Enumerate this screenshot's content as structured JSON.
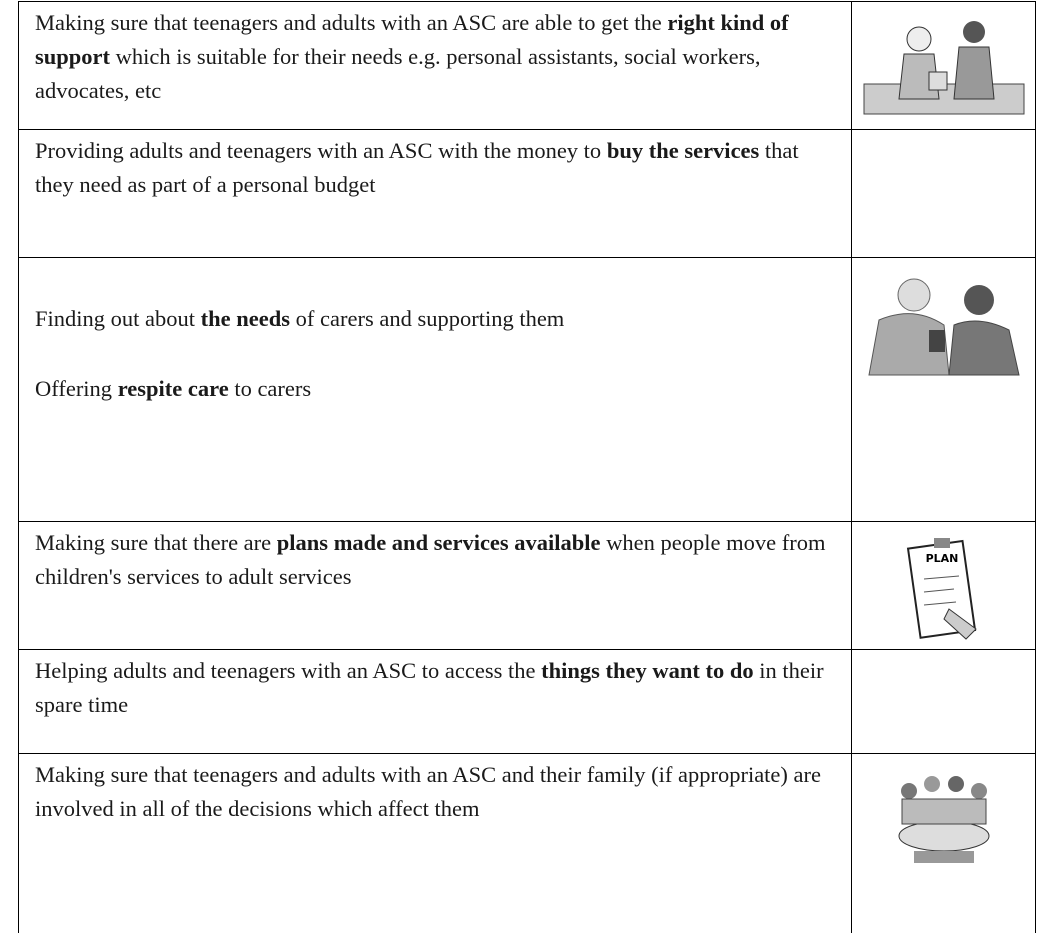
{
  "table": {
    "rows": [
      {
        "paragraphs": [
          [
            {
              "text": "Making sure that teenagers and adults with an ASC are able to get the "
            },
            {
              "text": "right kind of support",
              "bold": true
            },
            {
              "text": " which is suitable for their needs e.g. personal assistants, social workers, advocates, etc"
            }
          ]
        ]
      },
      {
        "paragraphs": [
          [
            {
              "text": "Providing adults and teenagers with an ASC with the money to "
            },
            {
              "text": "buy the services",
              "bold": true
            },
            {
              "text": " that they need as part of a personal budget"
            }
          ]
        ]
      },
      {
        "paragraphs": [
          [
            {
              "text": "Finding out about "
            },
            {
              "text": "the needs",
              "bold": true
            },
            {
              "text": " of carers and supporting them"
            }
          ],
          [
            {
              "text": "Offering "
            },
            {
              "text": "respite care",
              "bold": true
            },
            {
              "text": " to carers"
            }
          ]
        ]
      },
      {
        "paragraphs": [
          [
            {
              "text": "Making sure that there are "
            },
            {
              "text": "plans made and services available",
              "bold": true
            },
            {
              "text": " when people move from children's services to adult services"
            }
          ]
        ]
      },
      {
        "paragraphs": [
          [
            {
              "text": "Helping adults and teenagers with an ASC to access the "
            },
            {
              "text": "things they want to do",
              "bold": true
            },
            {
              "text": " in their spare time"
            }
          ]
        ]
      },
      {
        "paragraphs": [
          [
            {
              "text": "Making sure that teenagers and adults with an ASC and their family (if appropriate) are involved in all of the decisions which affect them"
            }
          ]
        ]
      }
    ],
    "plan_label": "PLAN"
  }
}
